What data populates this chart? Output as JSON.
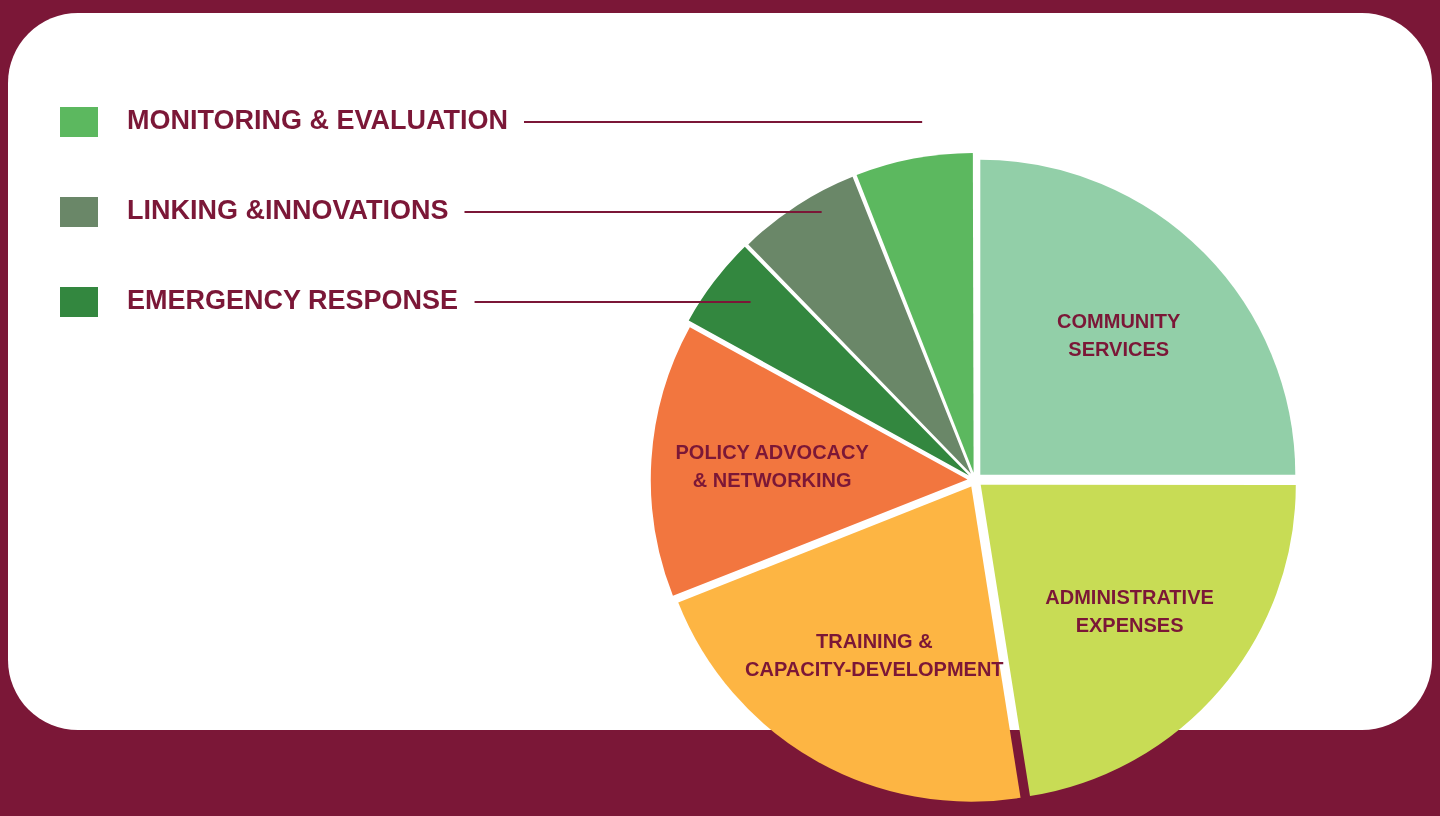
{
  "chart_data": {
    "type": "pie",
    "categories": [
      "COMMUNITY SERVICES",
      "ADMINISTRATIVE EXPENSES",
      "TRAINING & CAPACITY-DEVELOPMENT",
      "POLICY ADVOCACY & NETWORKING",
      "EMERGENCY RESPONSE",
      "LINKING &INNOVATIONS",
      "MONITORING & EVALUATION"
    ],
    "values": [
      25,
      22.5,
      21.5,
      14,
      4.7,
      6.3,
      6
    ],
    "colors": [
      "#92cfa8",
      "#c8dc55",
      "#fdb543",
      "#f2763f",
      "#33873f",
      "#6a8768",
      "#5cb85f"
    ],
    "legend": "top left"
  }
}
